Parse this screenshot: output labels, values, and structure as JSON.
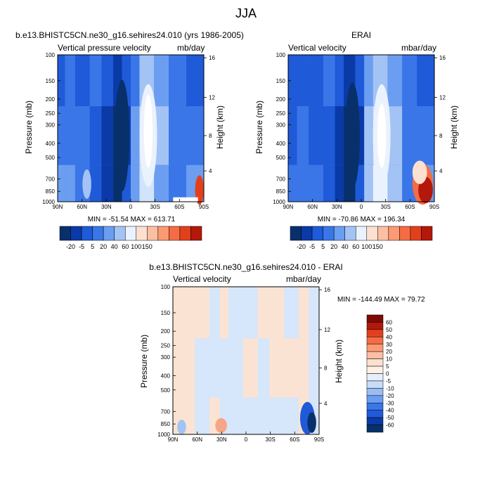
{
  "figure": {
    "title": "JJA",
    "colors": {
      "blues": [
        "#08306b",
        "#0a3aa8",
        "#1f5ad8",
        "#3a76e8",
        "#6b9ef0",
        "#a3c3f5",
        "#d2e4fb",
        "#eaf2fd"
      ],
      "reds": [
        "#fde0cf",
        "#fcbfa4",
        "#fb9a73",
        "#f56c44",
        "#e2401d",
        "#b3180a",
        "#7f0a05"
      ]
    }
  },
  "panels": [
    {
      "title": "b.e13.BHISTC5CN.ne30_g16.sehires24.010 (yrs 1986-2005)",
      "left_label": "Vertical pressure velocity",
      "right_label": "mb/day",
      "minmax": "MIN = -51.54  MAX = 613.71"
    },
    {
      "title": "ERAI",
      "left_label": "Vertical velocity",
      "right_label": "mbar/day",
      "minmax": "MIN = -70.86  MAX = 196.34"
    },
    {
      "title": "b.e13.BHISTC5CN.ne30_g16.sehires24.010 - ERAI",
      "left_label": "Vertical velocity",
      "right_label": "mbar/day",
      "minmax": "MIN = -144.49  MAX =  79.72"
    }
  ],
  "chart_data": [
    {
      "type": "heatmap",
      "title": "b.e13.BHISTC5CN.ne30_g16.sehires24.010 (yrs 1986-2005)",
      "variable": "Vertical pressure velocity",
      "units": "mb/day",
      "xlabel": "",
      "ylabel": "Pressure (mb)",
      "ylabel_right": "Height (km)",
      "x_ticks": [
        "90N",
        "60N",
        "30N",
        "0",
        "30S",
        "60S",
        "90S"
      ],
      "y_ticks": [
        "100",
        "150",
        "200",
        "250",
        "300",
        "400",
        "500",
        "700",
        "850",
        "1000"
      ],
      "y2_ticks": [
        "16",
        "12",
        "8",
        "4"
      ],
      "ylim": [
        1000,
        100
      ],
      "levels": [
        -20,
        -5,
        5,
        20,
        40,
        60,
        100,
        150
      ],
      "colorbar_labels": [
        "-20",
        "-5",
        "5",
        "20",
        "40",
        "60",
        "100",
        "150"
      ],
      "min": -51.54,
      "max": 613.71
    },
    {
      "type": "heatmap",
      "title": "ERAI",
      "variable": "Vertical velocity",
      "units": "mbar/day",
      "xlabel": "",
      "ylabel": "Pressure (mb)",
      "ylabel_right": "Height (km)",
      "x_ticks": [
        "90N",
        "60N",
        "30N",
        "0",
        "30S",
        "60S",
        "90S"
      ],
      "y_ticks": [
        "100",
        "150",
        "200",
        "250",
        "300",
        "400",
        "500",
        "700",
        "850",
        "1000"
      ],
      "y2_ticks": [
        "16",
        "12",
        "8",
        "4"
      ],
      "ylim": [
        1000,
        100
      ],
      "levels": [
        -20,
        -5,
        5,
        20,
        40,
        60,
        100,
        150
      ],
      "colorbar_labels": [
        "-20",
        "-5",
        "5",
        "20",
        "40",
        "60",
        "100",
        "150"
      ],
      "min": -70.86,
      "max": 196.34
    },
    {
      "type": "heatmap",
      "title": "b.e13.BHISTC5CN.ne30_g16.sehires24.010 - ERAI",
      "variable": "Vertical velocity",
      "units": "mbar/day",
      "xlabel": "",
      "ylabel": "Pressure (mb)",
      "ylabel_right": "Height (km)",
      "x_ticks": [
        "90N",
        "60N",
        "30N",
        "0",
        "30S",
        "60S",
        "90S"
      ],
      "y_ticks": [
        "100",
        "150",
        "200",
        "250",
        "300",
        "400",
        "500",
        "700",
        "850",
        "1000"
      ],
      "y2_ticks": [
        "16",
        "12",
        "8",
        "4"
      ],
      "ylim": [
        1000,
        100
      ],
      "levels": [
        -60,
        -50,
        -40,
        -30,
        -20,
        -10,
        -5,
        0,
        5,
        10,
        20,
        30,
        40,
        50,
        60
      ],
      "colorbar_labels": [
        "60",
        "50",
        "40",
        "30",
        "20",
        "10",
        "5",
        "0",
        "-5",
        "-10",
        "-20",
        "-30",
        "-40",
        "-50",
        "-60"
      ],
      "min": -144.49,
      "max": 79.72
    }
  ]
}
